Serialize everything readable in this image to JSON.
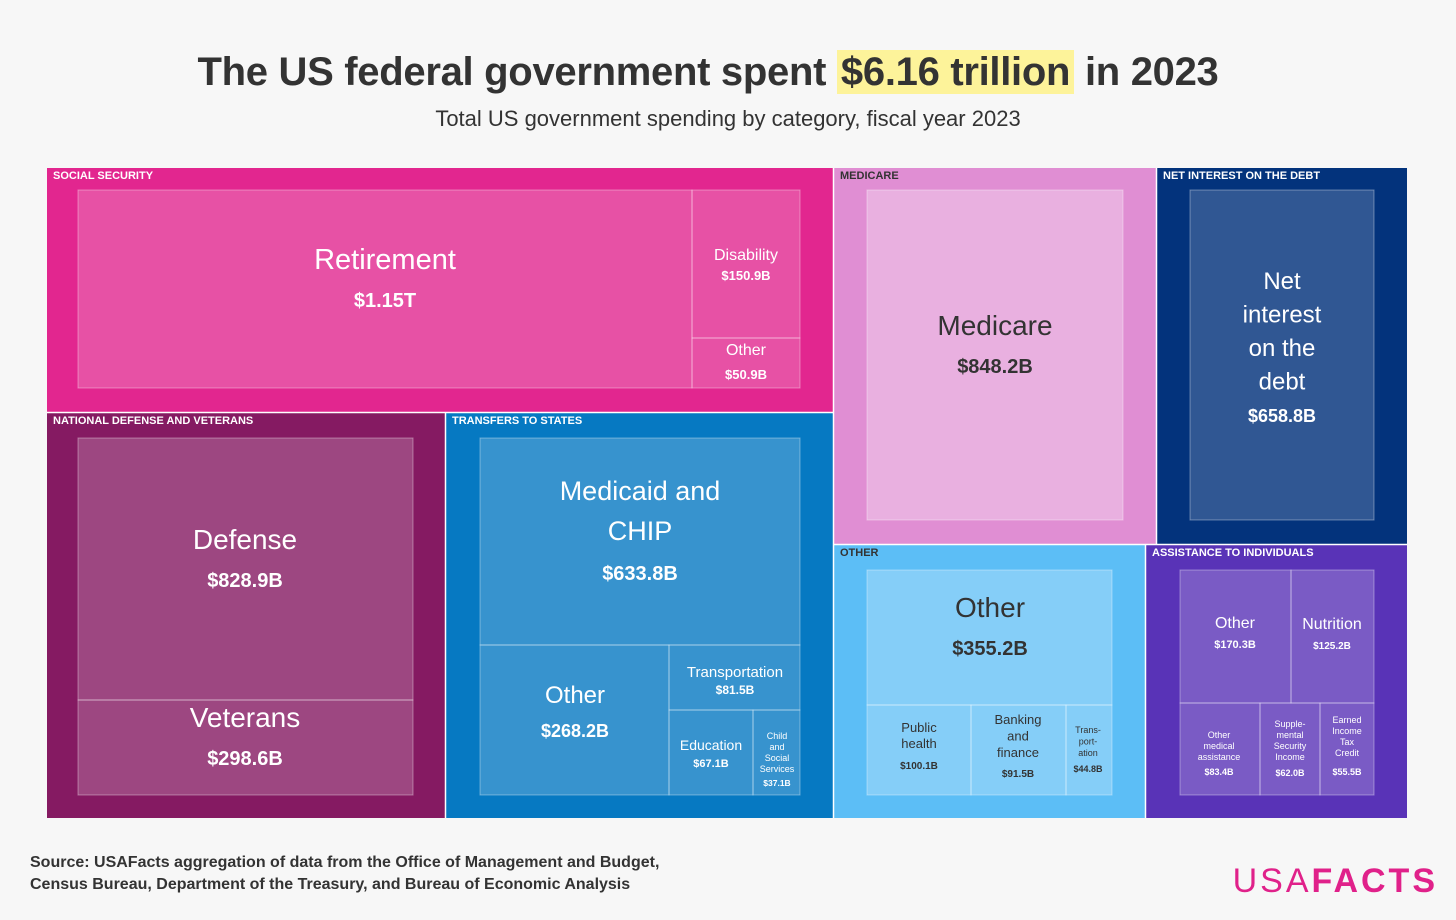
{
  "header": {
    "title_pre": "The US federal government spent ",
    "title_highlight": "$6.16 trillion",
    "title_post": " in 2023",
    "subtitle": "Total US government spending by category, fiscal year 2023"
  },
  "footer": {
    "source_line1": "Source: USAFacts aggregation of data from the Office of Management and Budget,",
    "source_line2": "Census Bureau, Department of the Treasury, and Bureau of Economic Analysis",
    "logo_part1": "USA",
    "logo_part2": "FACTS"
  },
  "colors": {
    "social_security": "#e2268f",
    "medicare": "#e08ed3",
    "net_interest": "#03337c",
    "defense_veterans": "#851a62",
    "transfers_to_states": "#0679c2",
    "other": "#5cbef6",
    "assistance": "#5933b7"
  },
  "chart_data": {
    "type": "treemap",
    "title": "The US federal government spent $6.16 trillion in 2023",
    "subtitle": "Total US government spending by category, fiscal year 2023",
    "unit": "USD",
    "groups": [
      {
        "name": "SOCIAL SECURITY",
        "items": [
          {
            "label": "Retirement",
            "value_label": "$1.15T",
            "value_billions": 1150
          },
          {
            "label": "Disability",
            "value_label": "$150.9B",
            "value_billions": 150.9
          },
          {
            "label": "Other",
            "value_label": "$50.9B",
            "value_billions": 50.9
          }
        ]
      },
      {
        "name": "MEDICARE",
        "items": [
          {
            "label": "Medicare",
            "value_label": "$848.2B",
            "value_billions": 848.2
          }
        ]
      },
      {
        "name": "NET INTEREST ON THE DEBT",
        "items": [
          {
            "label": "Net interest on the debt",
            "value_label": "$658.8B",
            "value_billions": 658.8
          }
        ]
      },
      {
        "name": "NATIONAL DEFENSE AND VETERANS",
        "items": [
          {
            "label": "Defense",
            "value_label": "$828.9B",
            "value_billions": 828.9
          },
          {
            "label": "Veterans",
            "value_label": "$298.6B",
            "value_billions": 298.6
          }
        ]
      },
      {
        "name": "TRANSFERS TO STATES",
        "items": [
          {
            "label": "Medicaid and CHIP",
            "value_label": "$633.8B",
            "value_billions": 633.8
          },
          {
            "label": "Other",
            "value_label": "$268.2B",
            "value_billions": 268.2
          },
          {
            "label": "Transportation",
            "value_label": "$81.5B",
            "value_billions": 81.5
          },
          {
            "label": "Education",
            "value_label": "$67.1B",
            "value_billions": 67.1
          },
          {
            "label": "Child and Social Services",
            "value_label": "$37.1B",
            "value_billions": 37.1
          }
        ]
      },
      {
        "name": "OTHER",
        "items": [
          {
            "label": "Other",
            "value_label": "$355.2B",
            "value_billions": 355.2
          },
          {
            "label": "Public health",
            "value_label": "$100.1B",
            "value_billions": 100.1
          },
          {
            "label": "Banking and finance",
            "value_label": "$91.5B",
            "value_billions": 91.5
          },
          {
            "label": "Trans-port-ation",
            "value_label": "$44.8B",
            "value_billions": 44.8
          }
        ]
      },
      {
        "name": "ASSISTANCE TO INDIVIDUALS",
        "items": [
          {
            "label": "Other",
            "value_label": "$170.3B",
            "value_billions": 170.3
          },
          {
            "label": "Nutrition",
            "value_label": "$125.2B",
            "value_billions": 125.2
          },
          {
            "label": "Other medical assistance",
            "value_label": "$83.4B",
            "value_billions": 83.4
          },
          {
            "label": "Supple-mental Security Income",
            "value_label": "$62.0B",
            "value_billions": 62.0
          },
          {
            "label": "Earned Income Tax Credit",
            "value_label": "$55.5B",
            "value_billions": 55.5
          }
        ]
      }
    ]
  }
}
